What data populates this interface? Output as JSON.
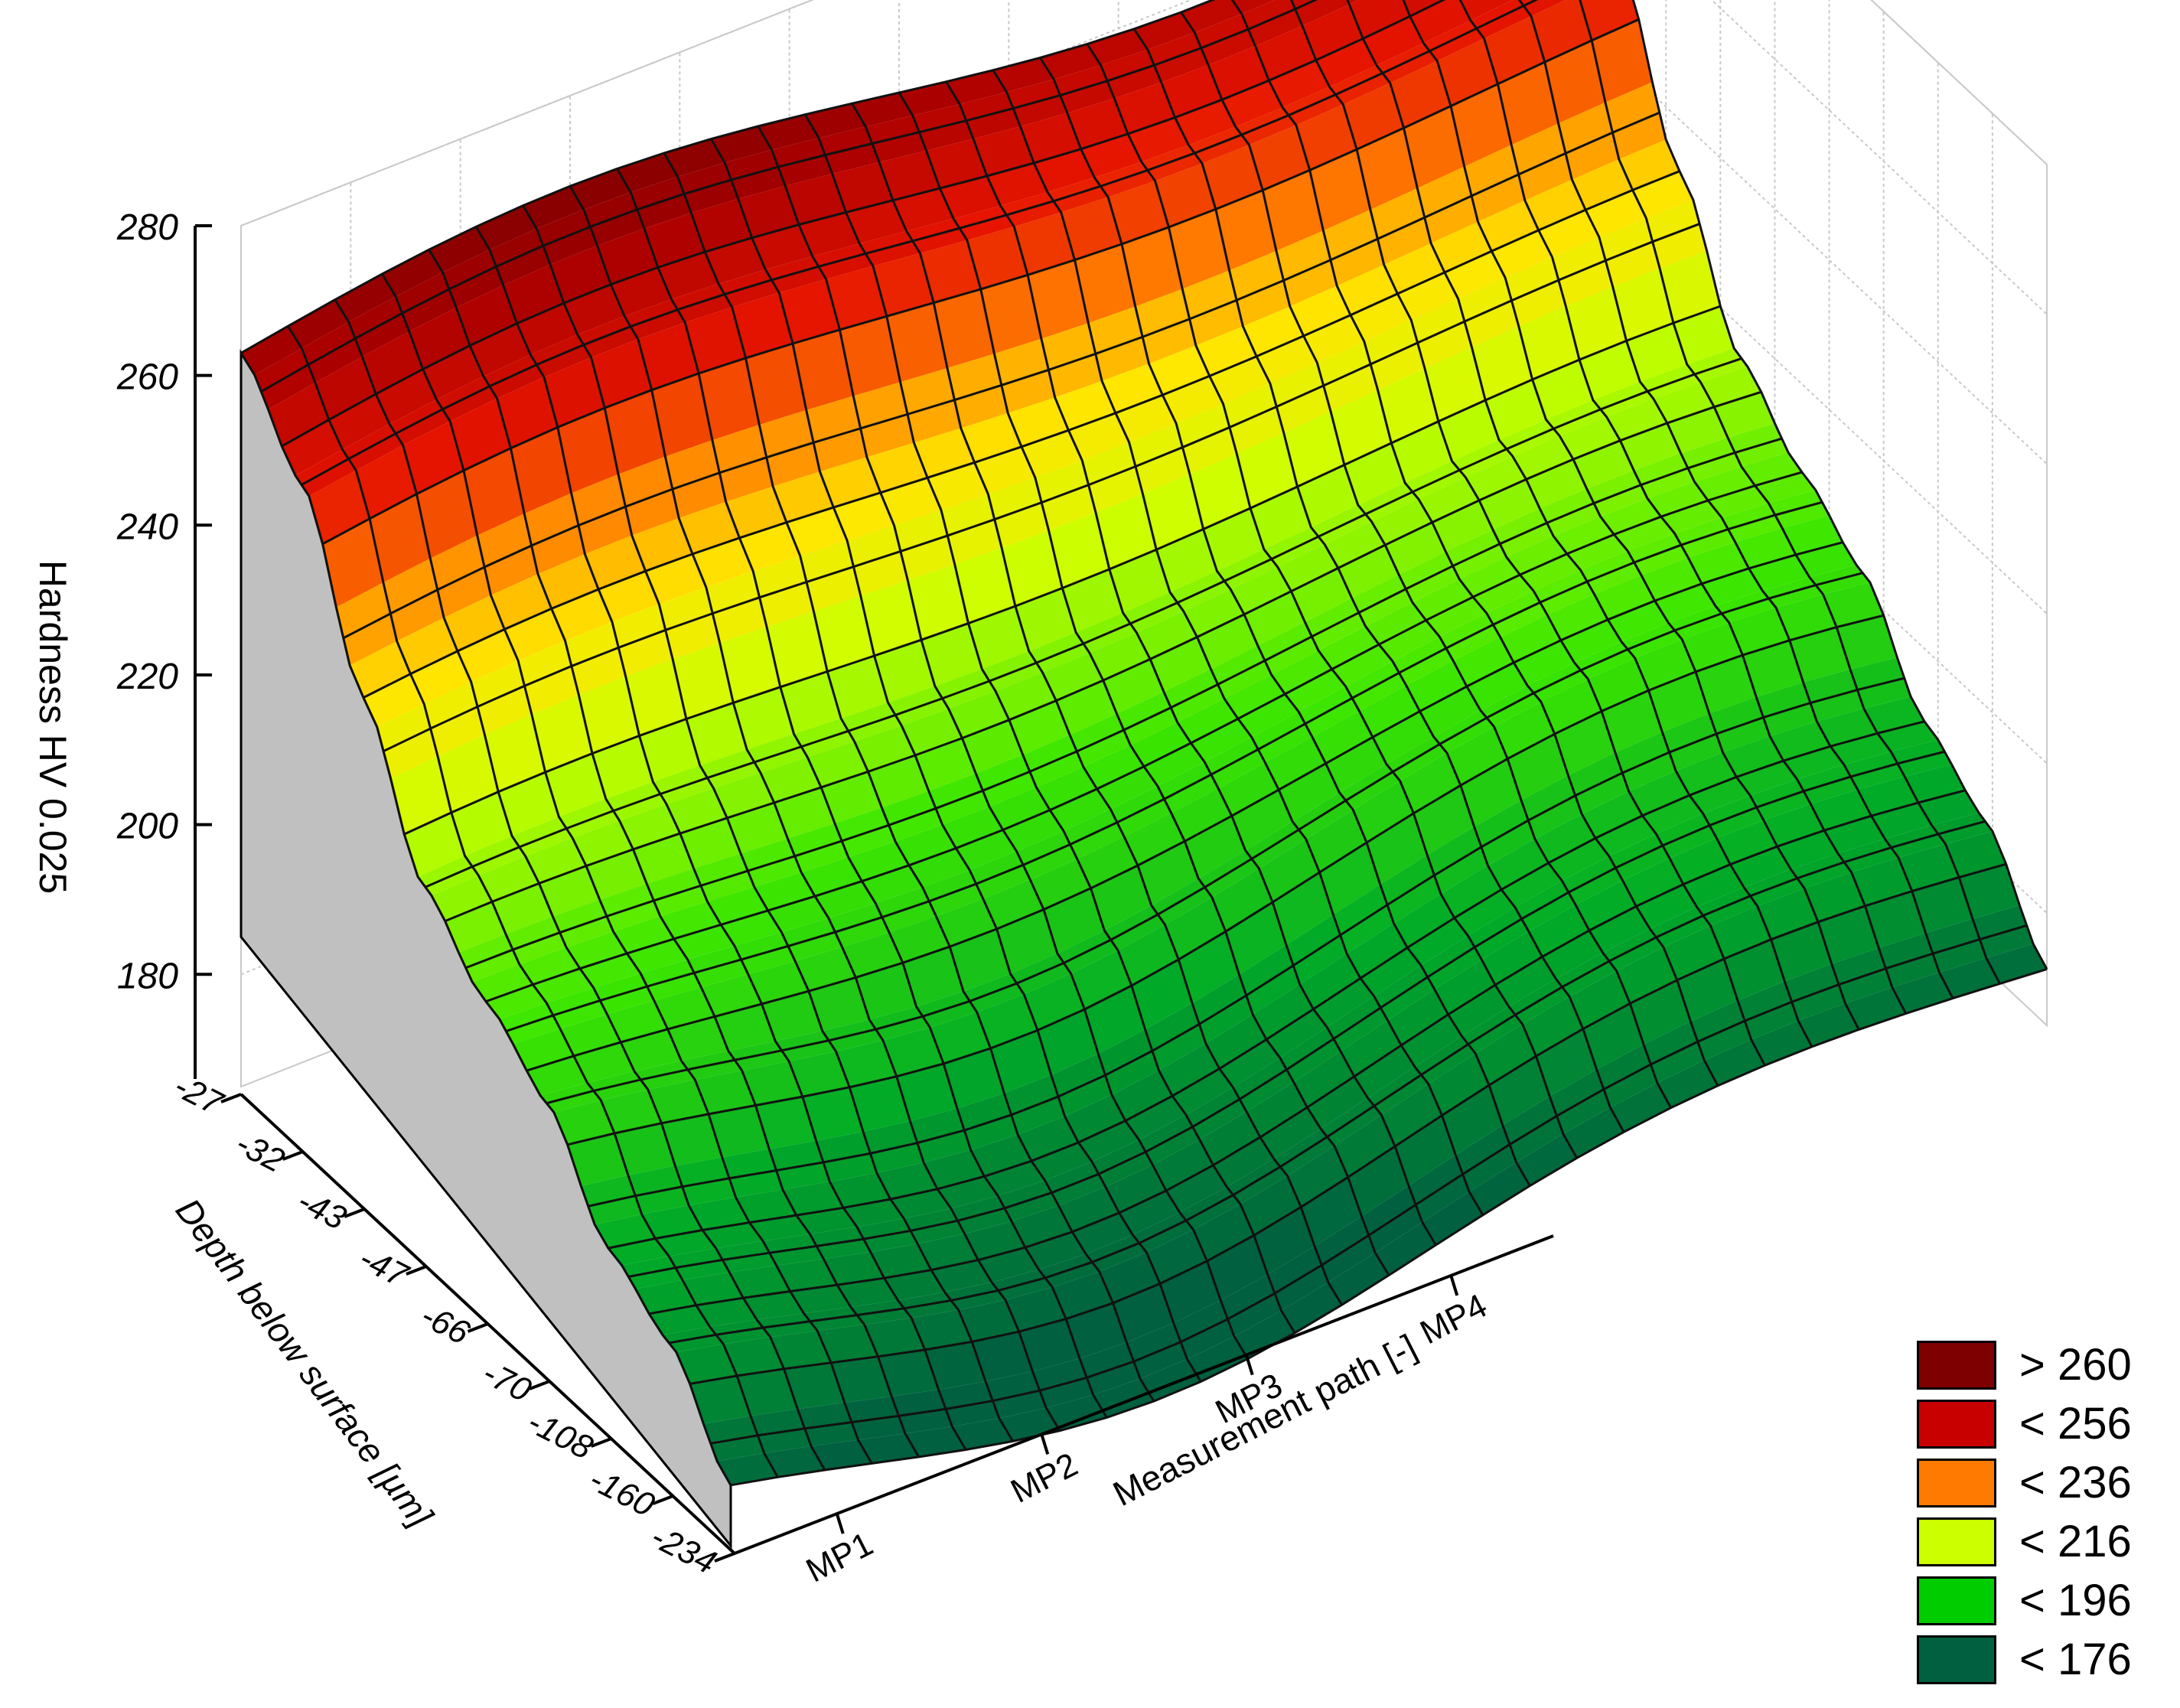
{
  "chart_data": {
    "type": "surface3d",
    "z_axis": {
      "label": "Hardness HV 0.025",
      "ticks": [
        180,
        200,
        220,
        240,
        260,
        280
      ],
      "range": [
        165,
        280
      ]
    },
    "y_axis": {
      "label": "Depth below surface [µm]",
      "ticks": [
        "-27",
        "-32",
        "-43",
        "-47",
        "-66",
        "-70",
        "-108",
        "-160",
        "-234"
      ]
    },
    "x_axis": {
      "label": "Measurement path [-]",
      "ticks": [
        "MP1",
        "MP2",
        "MP3",
        "MP4"
      ]
    },
    "depth_profile": [
      {
        "depth": "-27",
        "hardness": 263
      },
      {
        "depth": "-32",
        "hardness": 253
      },
      {
        "depth": "-43",
        "hardness": 232
      },
      {
        "depth": "-47",
        "hardness": 214
      },
      {
        "depth": "-66",
        "hardness": 206
      },
      {
        "depth": "-70",
        "hardness": 200
      },
      {
        "depth": "-108",
        "hardness": 188
      },
      {
        "depth": "-160",
        "hardness": 183
      },
      {
        "depth": "-234",
        "hardness": 172
      }
    ],
    "grid": true,
    "legend_position": "bottom-right",
    "legend": [
      {
        "label": "> 260",
        "color": "#7f0000"
      },
      {
        "label": "< 256",
        "color": "#c80000"
      },
      {
        "label": "< 236",
        "color": "#ff7a00"
      },
      {
        "label": "< 216",
        "color": "#ccff00"
      },
      {
        "label": "< 196",
        "color": "#00cc00"
      },
      {
        "label": "< 176",
        "color": "#006040"
      }
    ]
  }
}
